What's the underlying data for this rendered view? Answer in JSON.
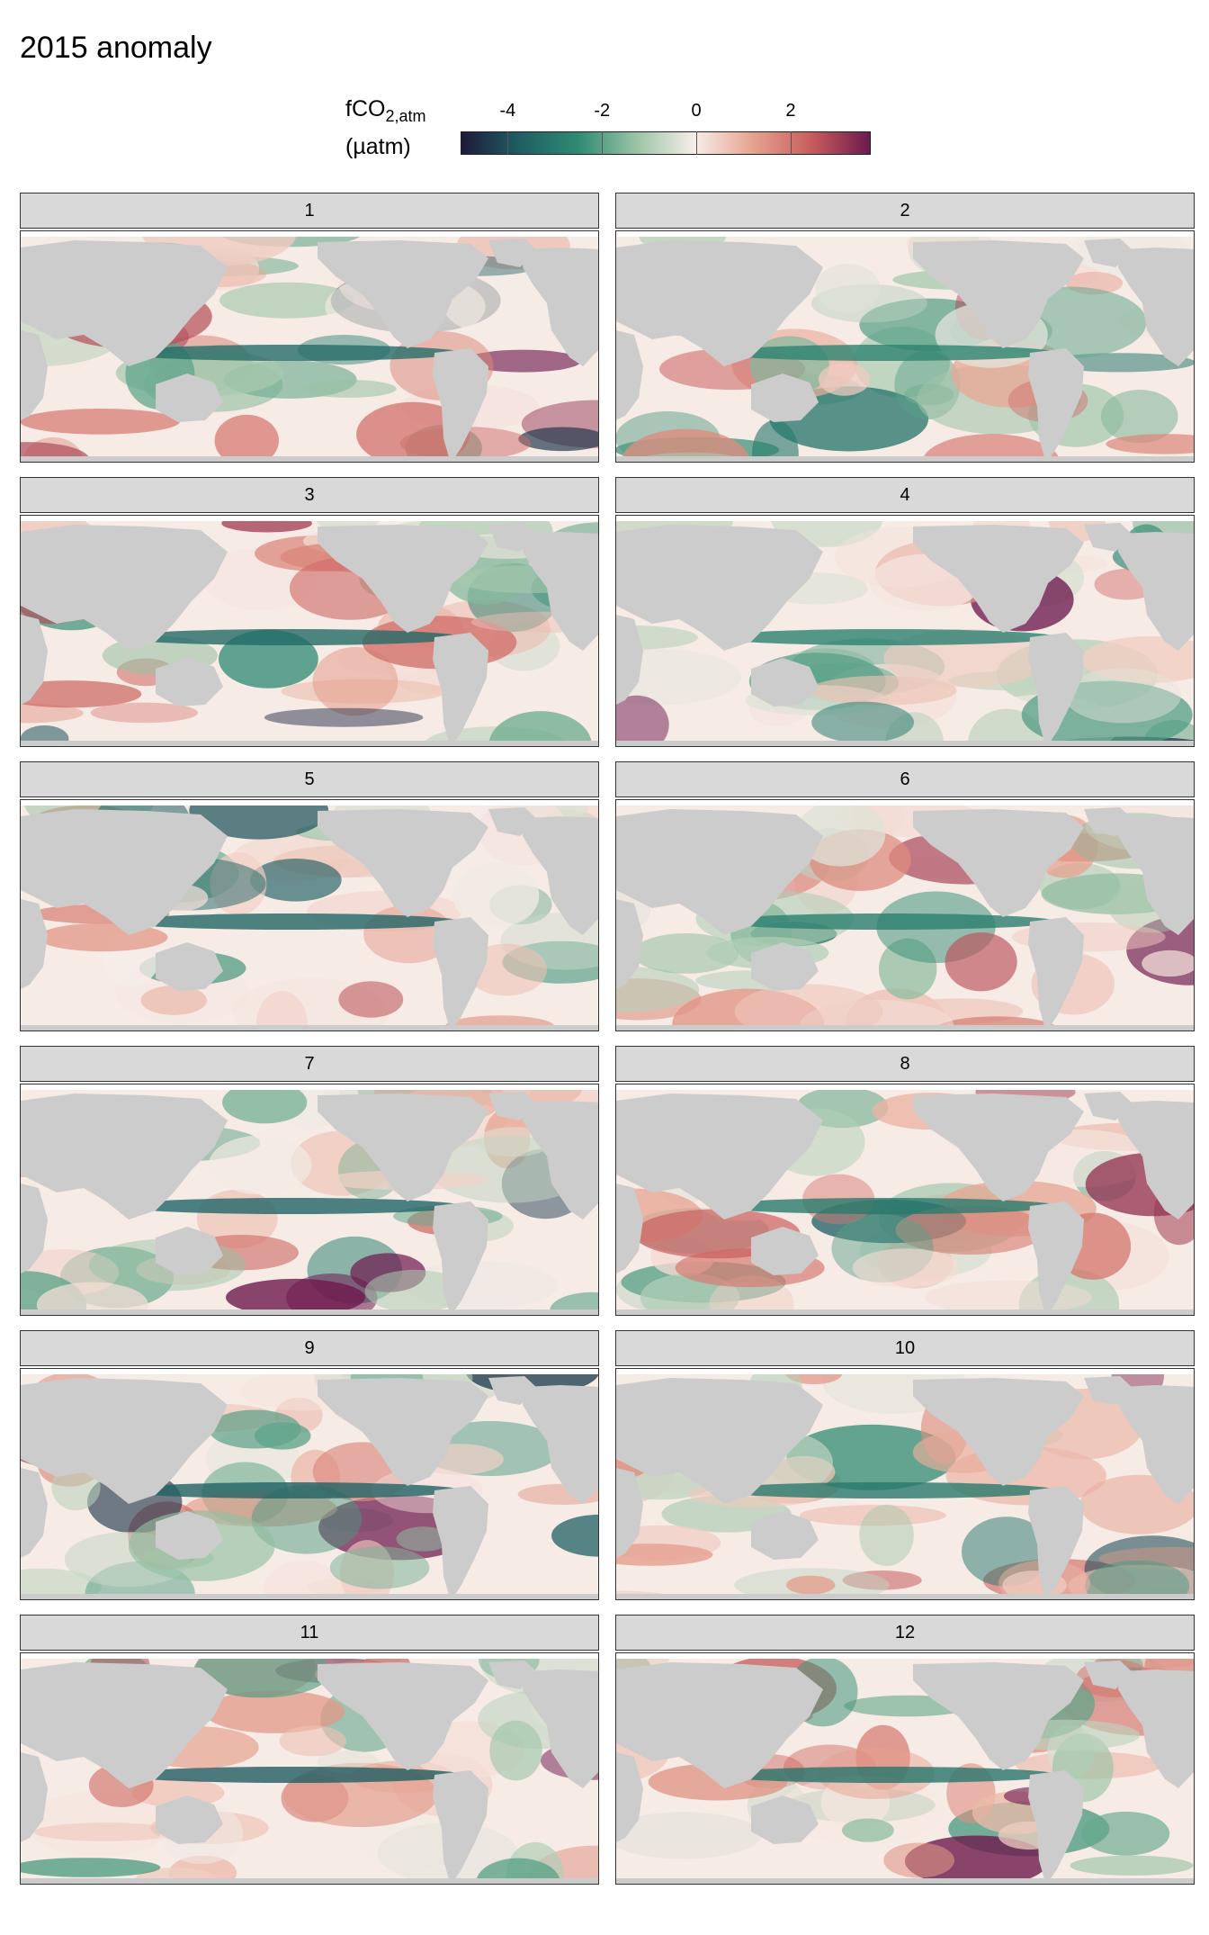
{
  "title": "2015 anomaly",
  "chart_data": {
    "type": "heatmap",
    "title": "2015 anomaly",
    "colorbar": {
      "label_main": "fCO",
      "label_sub": "2,atm",
      "label_unit": "(µatm)",
      "ticks": [
        -4,
        -2,
        0,
        2
      ],
      "range": [
        -5,
        3.7
      ],
      "colors": [
        "#1e1a3a",
        "#1f5f63",
        "#2e8a73",
        "#9bc4a6",
        "#f7ede8",
        "#e6a28f",
        "#c85c5c",
        "#6d1a4e"
      ]
    },
    "land_color": "#cccccc",
    "panels": [
      {
        "label": "1"
      },
      {
        "label": "2"
      },
      {
        "label": "3"
      },
      {
        "label": "4"
      },
      {
        "label": "5"
      },
      {
        "label": "6"
      },
      {
        "label": "7"
      },
      {
        "label": "8"
      },
      {
        "label": "9"
      },
      {
        "label": "10"
      },
      {
        "label": "11"
      },
      {
        "label": "12"
      }
    ]
  }
}
